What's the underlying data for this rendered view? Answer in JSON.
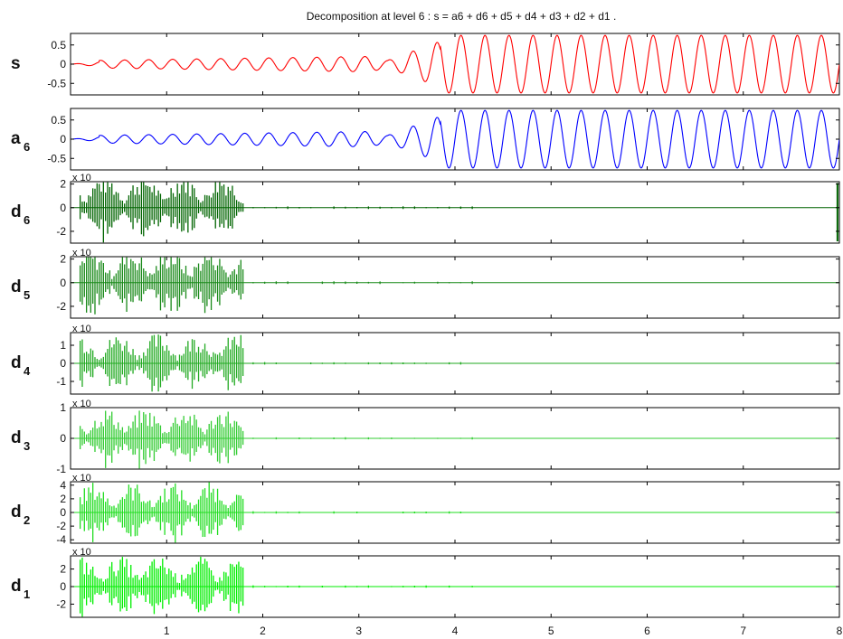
{
  "chart_data": {
    "type": "line",
    "title": "Decomposition at level 6 : s = a6 + d6 + d5 + d4 + d3 + d2 + d1 .",
    "x_tick_labels": [
      "1",
      "2",
      "3",
      "4",
      "5",
      "6",
      "7",
      "8"
    ],
    "xlim": [
      0,
      8
    ],
    "grid": false,
    "panels": [
      {
        "id": "s",
        "label_main": "s",
        "label_sub": "",
        "color": "#ff0000",
        "ylim": [
          -0.8,
          0.8
        ],
        "yticks": [
          "0.5",
          "0",
          "-0.5"
        ],
        "ytick_values": [
          0.5,
          0,
          -0.5
        ],
        "exponent": "",
        "kind": "signal",
        "amplitude_after_4": 0.75,
        "amplitude_early": 0.1,
        "frequency": 4
      },
      {
        "id": "a6",
        "label_main": "a",
        "label_sub": "6",
        "color": "#0000ff",
        "ylim": [
          -0.8,
          0.8
        ],
        "yticks": [
          "0.5",
          "0",
          "-0.5"
        ],
        "ytick_values": [
          0.5,
          0,
          -0.5
        ],
        "exponent": "",
        "kind": "signal",
        "amplitude_after_4": 0.75,
        "amplitude_early": 0.1,
        "frequency": 4
      },
      {
        "id": "d6",
        "label_main": "d",
        "label_sub": "6",
        "color": "#006400",
        "ylim": [
          -3,
          2.2
        ],
        "yticks": [
          "2",
          "0",
          "-2"
        ],
        "ytick_values": [
          2,
          0,
          -2
        ],
        "exponent": "x 10",
        "kind": "detail",
        "burst_end": 1.8
      },
      {
        "id": "d5",
        "label_main": "d",
        "label_sub": "5",
        "color": "#1a8a1a",
        "ylim": [
          -3,
          2.2
        ],
        "yticks": [
          "2",
          "0",
          "-2"
        ],
        "ytick_values": [
          2,
          0,
          -2
        ],
        "exponent": "x 10",
        "kind": "detail",
        "burst_end": 1.8
      },
      {
        "id": "d4",
        "label_main": "d",
        "label_sub": "4",
        "color": "#22aa22",
        "ylim": [
          -1.7,
          1.7
        ],
        "yticks": [
          "1",
          "0",
          "-1"
        ],
        "ytick_values": [
          1,
          0,
          -1
        ],
        "exponent": "x 10",
        "kind": "detail",
        "burst_end": 1.8
      },
      {
        "id": "d3",
        "label_main": "d",
        "label_sub": "3",
        "color": "#33cc33",
        "ylim": [
          -1,
          1
        ],
        "yticks": [
          "1",
          "0",
          "-1"
        ],
        "ytick_values": [
          1,
          0,
          -1
        ],
        "exponent": "x 10",
        "kind": "detail",
        "burst_end": 1.8
      },
      {
        "id": "d2",
        "label_main": "d",
        "label_sub": "2",
        "color": "#22dd22",
        "ylim": [
          -4.5,
          4.5
        ],
        "yticks": [
          "4",
          "2",
          "0",
          "-2",
          "-4"
        ],
        "ytick_values": [
          4,
          2,
          0,
          -2,
          -4
        ],
        "exponent": "x 10",
        "kind": "detail",
        "burst_end": 1.8
      },
      {
        "id": "d1",
        "label_main": "d",
        "label_sub": "1",
        "color": "#00ee00",
        "ylim": [
          -3.5,
          3.5
        ],
        "yticks": [
          "2",
          "0",
          "-2"
        ],
        "ytick_values": [
          2,
          0,
          -2
        ],
        "exponent": "x 10",
        "kind": "detail",
        "burst_end": 1.8
      }
    ]
  }
}
